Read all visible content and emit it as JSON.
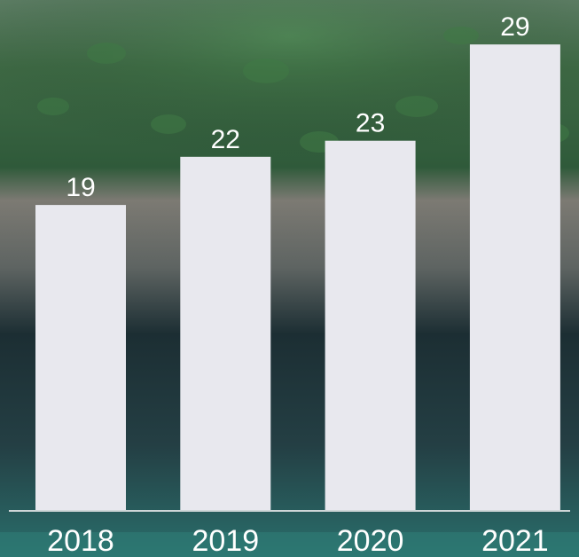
{
  "colors": {
    "bar": "#e8e8ee",
    "baseline": "#cfd6d8",
    "text": "#ffffff"
  },
  "background": {
    "description_icon": "green-pellets-photo"
  },
  "chart_data": {
    "type": "bar",
    "categories": [
      "2018",
      "2019",
      "2020",
      "2021"
    ],
    "values": [
      19,
      22,
      23,
      29
    ],
    "ylim": [
      0,
      30
    ],
    "grid": false,
    "legend": "none",
    "data_labels": true
  }
}
